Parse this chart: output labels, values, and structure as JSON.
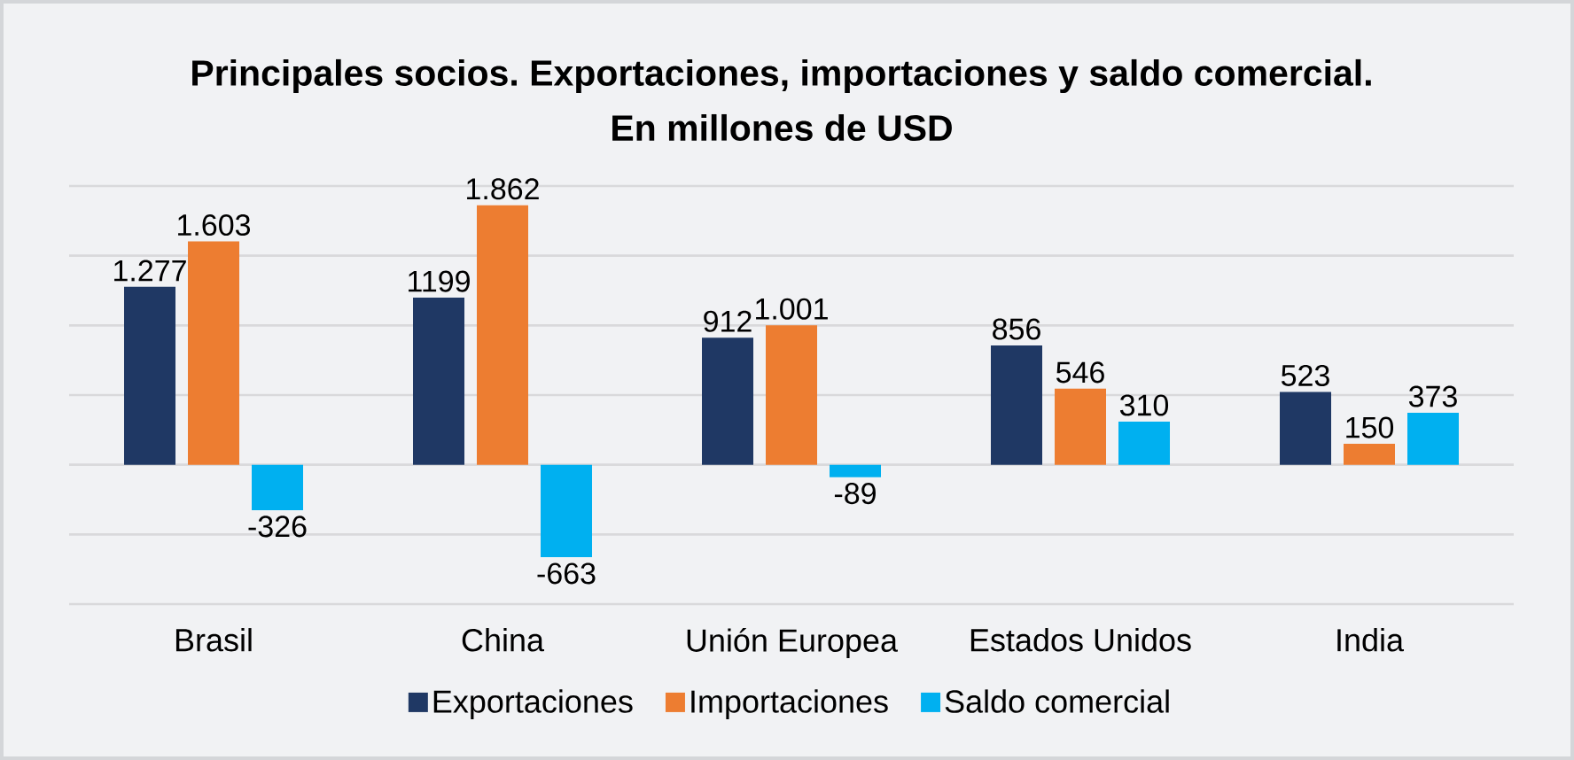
{
  "chart_data": {
    "type": "bar",
    "title": "Principales socios. Exportaciones, importaciones y saldo comercial.",
    "subtitle": "En millones de USD",
    "categories": [
      "Brasil",
      "China",
      "Unión Europea",
      "Estados Unidos",
      "India"
    ],
    "series": [
      {
        "name": "Exportaciones",
        "color": "#1f3864",
        "values": [
          1277,
          1199,
          912,
          856,
          523
        ],
        "value_labels": [
          "1.277",
          "1199",
          "912",
          "856",
          "523"
        ]
      },
      {
        "name": "Importaciones",
        "color": "#ed7d31",
        "values": [
          1603,
          1862,
          1001,
          546,
          150
        ],
        "value_labels": [
          "1.603",
          "1.862",
          "1.001",
          "546",
          "150"
        ]
      },
      {
        "name": "Saldo comercial",
        "color": "#00b0f0",
        "values": [
          -326,
          -663,
          -89,
          310,
          373
        ],
        "value_labels": [
          "-326",
          "-663",
          "-89",
          "310",
          "373"
        ]
      }
    ],
    "ylim": [
      -1000,
      2000
    ],
    "yticks": [
      {
        "value": -1000,
        "label": null
      },
      {
        "value": -500,
        "label": null
      },
      {
        "value": 0,
        "label": null
      },
      {
        "value": 500,
        "label": null
      },
      {
        "value": 1000,
        "label": null
      },
      {
        "value": 1500,
        "label": null
      },
      {
        "value": 2000,
        "label": null
      }
    ],
    "grid": "y",
    "legend": "bottom",
    "tick_labels": "x"
  }
}
